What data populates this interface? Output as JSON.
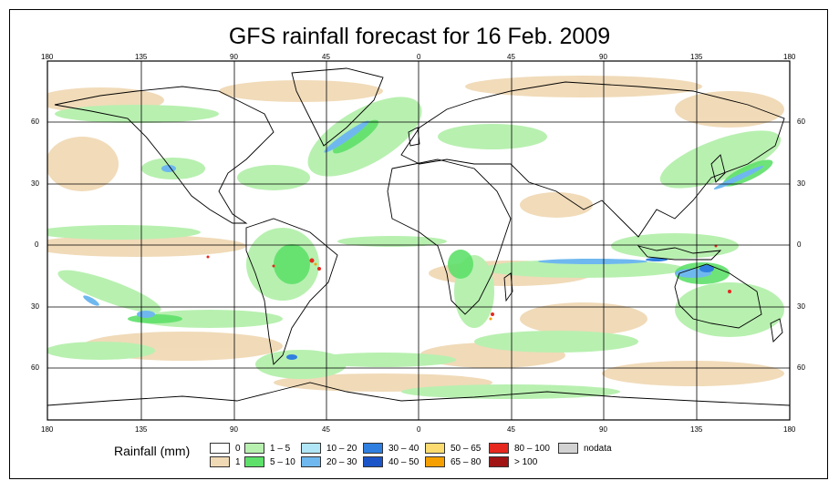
{
  "title": "GFS rainfall forecast for 16 Feb. 2009",
  "axes": {
    "lon_labels": [
      "180",
      "135",
      "90",
      "45",
      "0",
      "45",
      "90",
      "135",
      "180"
    ],
    "lat_labels": [
      "60",
      "30",
      "0",
      "30",
      "60"
    ]
  },
  "legend": {
    "title": "Rainfall (mm)",
    "items": [
      {
        "label": "0",
        "color": "#ffffff"
      },
      {
        "label": "1",
        "color": "#f0d9b5"
      },
      {
        "label": "1 – 5",
        "color": "#b8f0b0"
      },
      {
        "label": "5 – 10",
        "color": "#5ee06a"
      },
      {
        "label": "10 – 20",
        "color": "#b0e6f5"
      },
      {
        "label": "20 – 30",
        "color": "#6eb8ef"
      },
      {
        "label": "30 – 40",
        "color": "#2f7fe0"
      },
      {
        "label": "40 – 50",
        "color": "#1c55c8"
      },
      {
        "label": "50 – 65",
        "color": "#fcdc70"
      },
      {
        "label": "65 – 80",
        "color": "#f5a000"
      },
      {
        "label": "80 – 100",
        "color": "#e6281e"
      },
      {
        "label": "> 100",
        "color": "#a01414"
      },
      {
        "label": "nodata",
        "color": "#d2d2d2"
      }
    ]
  },
  "colors": {
    "coastline": "#000000",
    "grid": "#000000"
  }
}
